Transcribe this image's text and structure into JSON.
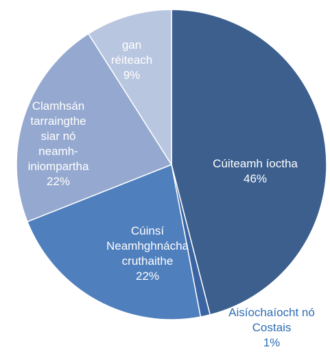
{
  "chart_data": {
    "type": "pie",
    "categories": [
      "Cúiteamh íoctha",
      "Aisíochaíocht nó Costais",
      "Cúinsí Neamhghnácha cruthaithe",
      "Clamhsán tarraingthe siar nó neamh-iniompartha",
      "gan réiteach"
    ],
    "values": [
      46,
      1,
      22,
      22,
      9
    ],
    "value_labels": [
      "46%",
      "1%",
      "22%",
      "22%",
      "9%"
    ],
    "colors": [
      "#3c5f8e",
      "#3a65a2",
      "#4f7fbd",
      "#95a9d0",
      "#b9c6e0"
    ]
  }
}
